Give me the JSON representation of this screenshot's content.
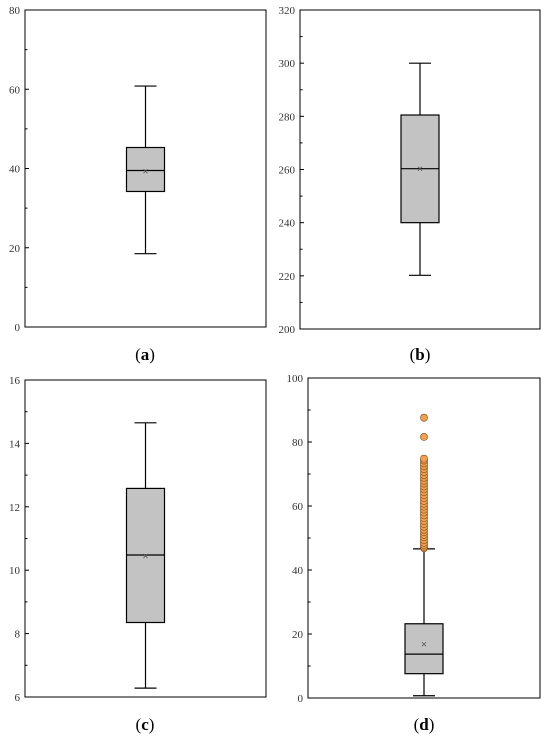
{
  "chart_data": [
    {
      "type": "box",
      "panel_label": "a",
      "ylim": [
        0,
        80
      ],
      "yticks": [
        "0",
        "20",
        "40",
        "60",
        "80"
      ],
      "tick_values": [
        0,
        20,
        40,
        60,
        80
      ],
      "box": {
        "whisker_low": 18.5,
        "q1": 34.2,
        "median": 39.5,
        "mean": 39.3,
        "q3": 45.3,
        "whisker_high": 60.8
      },
      "outliers": []
    },
    {
      "type": "box",
      "panel_label": "b",
      "ylim": [
        200,
        320
      ],
      "yticks": [
        "200",
        "220",
        "240",
        "260",
        "280",
        "300",
        "320"
      ],
      "tick_values": [
        200,
        220,
        240,
        260,
        280,
        300,
        320
      ],
      "box": {
        "whisker_low": 220.2,
        "q1": 240.0,
        "median": 260.3,
        "mean": 260.3,
        "q3": 280.5,
        "whisker_high": 300.0
      },
      "outliers": []
    },
    {
      "type": "box",
      "panel_label": "c",
      "ylim": [
        6,
        16
      ],
      "yticks": [
        "6",
        "8",
        "10",
        "12",
        "14",
        "16"
      ],
      "tick_values": [
        6,
        8,
        10,
        12,
        14,
        16
      ],
      "box": {
        "whisker_low": 6.28,
        "q1": 8.35,
        "median": 10.48,
        "mean": 10.45,
        "q3": 12.58,
        "whisker_high": 14.65
      },
      "outliers": []
    },
    {
      "type": "box",
      "panel_label": "d",
      "ylim": [
        0,
        100
      ],
      "yticks": [
        "0",
        "20",
        "40",
        "60",
        "80",
        "100"
      ],
      "tick_values": [
        0,
        20,
        40,
        60,
        80,
        100
      ],
      "box": {
        "whisker_low": 0.7,
        "q1": 7.6,
        "median": 13.7,
        "mean": 16.8,
        "q3": 23.2,
        "whisker_high": 46.6
      },
      "outliers": [
        46.8,
        47.2,
        47.8,
        48.5,
        49.3,
        50.2,
        51.0,
        51.8,
        52.6,
        53.5,
        54.4,
        55.3,
        56.2,
        57.1,
        58.0,
        58.9,
        59.8,
        60.7,
        61.6,
        62.5,
        63.4,
        64.3,
        65.2,
        66.1,
        67.0,
        67.9,
        68.8,
        69.7,
        70.6,
        71.5,
        72.4,
        73.3,
        74.2,
        74.8,
        81.6,
        87.6
      ],
      "outlier_color": "#f0a050"
    }
  ]
}
